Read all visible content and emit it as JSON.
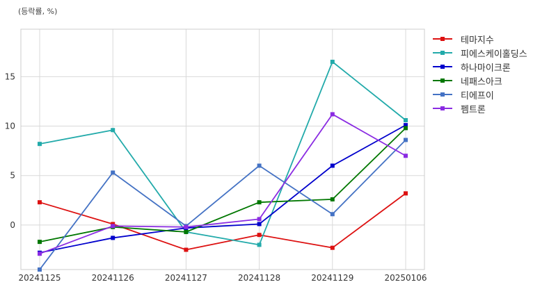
{
  "chart_data": {
    "type": "line",
    "unit_label": "(등락률, %)",
    "title": "",
    "xlabel": "",
    "ylabel": "",
    "categories": [
      "20241125",
      "20241126",
      "20241127",
      "20241128",
      "20241129",
      "20250106"
    ],
    "ylim": [
      -4.5,
      19.8
    ],
    "yticks": [
      0,
      5,
      10,
      15
    ],
    "grid": true,
    "legend_position": "right-top",
    "series": [
      {
        "name": "테마지수",
        "color": "#dd1111",
        "values": [
          2.3,
          0.1,
          -2.5,
          -1.0,
          -2.3,
          3.2
        ]
      },
      {
        "name": "피에스케이홀딩스",
        "color": "#22aaaa",
        "values": [
          8.2,
          9.6,
          -0.7,
          -2.0,
          16.5,
          10.6
        ]
      },
      {
        "name": "하나마이크론",
        "color": "#0000cc",
        "values": [
          -2.8,
          -1.3,
          -0.3,
          0.1,
          6.0,
          10.1
        ]
      },
      {
        "name": "네패스아크",
        "color": "#007700",
        "values": [
          -1.7,
          -0.2,
          -0.7,
          2.3,
          2.6,
          9.8
        ]
      },
      {
        "name": "티에프이",
        "color": "#4472c4",
        "values": [
          -4.5,
          5.3,
          -0.1,
          6.0,
          1.1,
          8.6
        ]
      },
      {
        "name": "펨트론",
        "color": "#8a2be2",
        "values": [
          -2.9,
          -0.1,
          -0.2,
          0.6,
          11.2,
          7.0
        ]
      }
    ]
  }
}
